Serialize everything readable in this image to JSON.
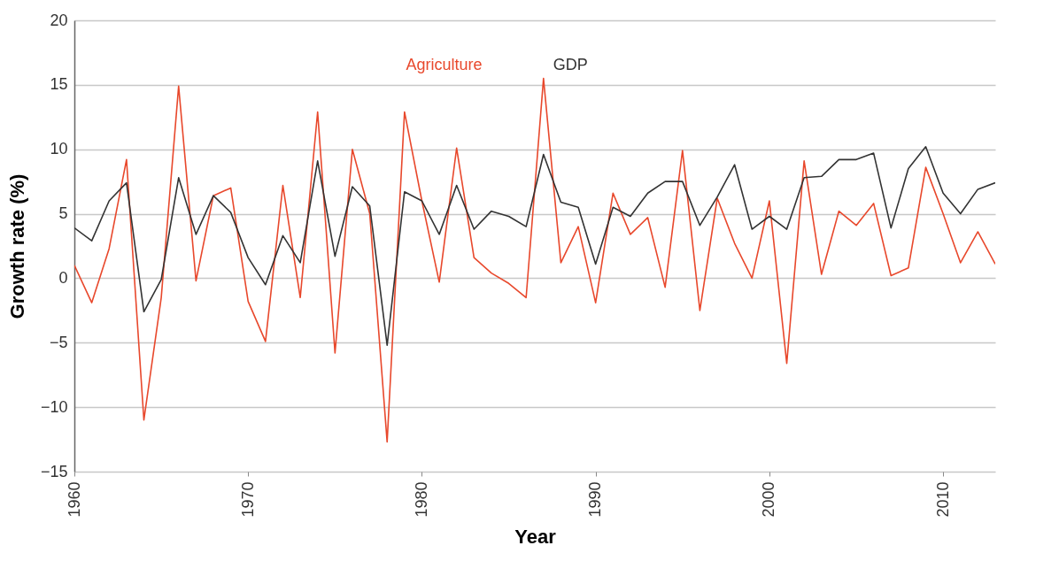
{
  "chart_data": {
    "type": "line",
    "xlabel": "Year",
    "ylabel": "Growth rate (%)",
    "x": [
      1960,
      1961,
      1962,
      1963,
      1964,
      1965,
      1966,
      1967,
      1968,
      1969,
      1970,
      1971,
      1972,
      1973,
      1974,
      1975,
      1976,
      1977,
      1978,
      1979,
      1980,
      1981,
      1982,
      1983,
      1984,
      1985,
      1986,
      1987,
      1988,
      1989,
      1990,
      1991,
      1992,
      1993,
      1994,
      1995,
      1996,
      1997,
      1998,
      1999,
      2000,
      2001,
      2002,
      2003,
      2004,
      2005,
      2006,
      2007,
      2008,
      2009,
      2010,
      2011,
      2012,
      2013
    ],
    "series": [
      {
        "name": "Agriculture",
        "color": "#e8482c",
        "values": [
          1.0,
          -1.9,
          2.3,
          9.2,
          -11.0,
          -1.5,
          14.9,
          -0.2,
          6.4,
          7.0,
          -1.8,
          -4.9,
          7.2,
          -1.5,
          12.9,
          -5.8,
          10.0,
          5.0,
          -12.7,
          12.9,
          6.0,
          -0.3,
          10.1,
          1.6,
          0.4,
          -0.4,
          -1.5,
          15.5,
          1.2,
          4.0,
          -1.9,
          6.6,
          3.4,
          4.7,
          -0.7,
          9.9,
          -2.5,
          6.2,
          2.7,
          0.0,
          6.0,
          -6.6,
          9.1,
          0.3,
          5.2,
          4.1,
          5.8,
          0.2,
          0.8,
          8.6,
          5.0,
          1.2,
          3.6,
          1.1
        ]
      },
      {
        "name": "GDP",
        "color": "#333333",
        "values": [
          3.9,
          2.9,
          6.0,
          7.4,
          -2.6,
          -0.1,
          7.8,
          3.4,
          6.4,
          5.1,
          1.6,
          -0.5,
          3.3,
          1.2,
          9.1,
          1.7,
          7.1,
          5.6,
          -5.2,
          6.7,
          6.0,
          3.4,
          7.2,
          3.8,
          5.2,
          4.8,
          4.0,
          9.6,
          5.9,
          5.5,
          1.1,
          5.5,
          4.8,
          6.6,
          7.5,
          7.5,
          4.1,
          6.3,
          8.8,
          3.8,
          4.8,
          3.8,
          7.8,
          7.9,
          9.2,
          9.2,
          9.7,
          3.9,
          8.5,
          10.2,
          6.6,
          5.0,
          6.9,
          7.4
        ]
      }
    ],
    "xlim": [
      1960,
      2013
    ],
    "xticks": [
      1960,
      1970,
      1980,
      1990,
      2000,
      2010
    ],
    "ylim": [
      -15,
      20
    ],
    "yticks": [
      -15,
      -10,
      -5,
      0,
      5,
      10,
      15,
      20
    ],
    "grid": "y",
    "line_style": "solid"
  }
}
